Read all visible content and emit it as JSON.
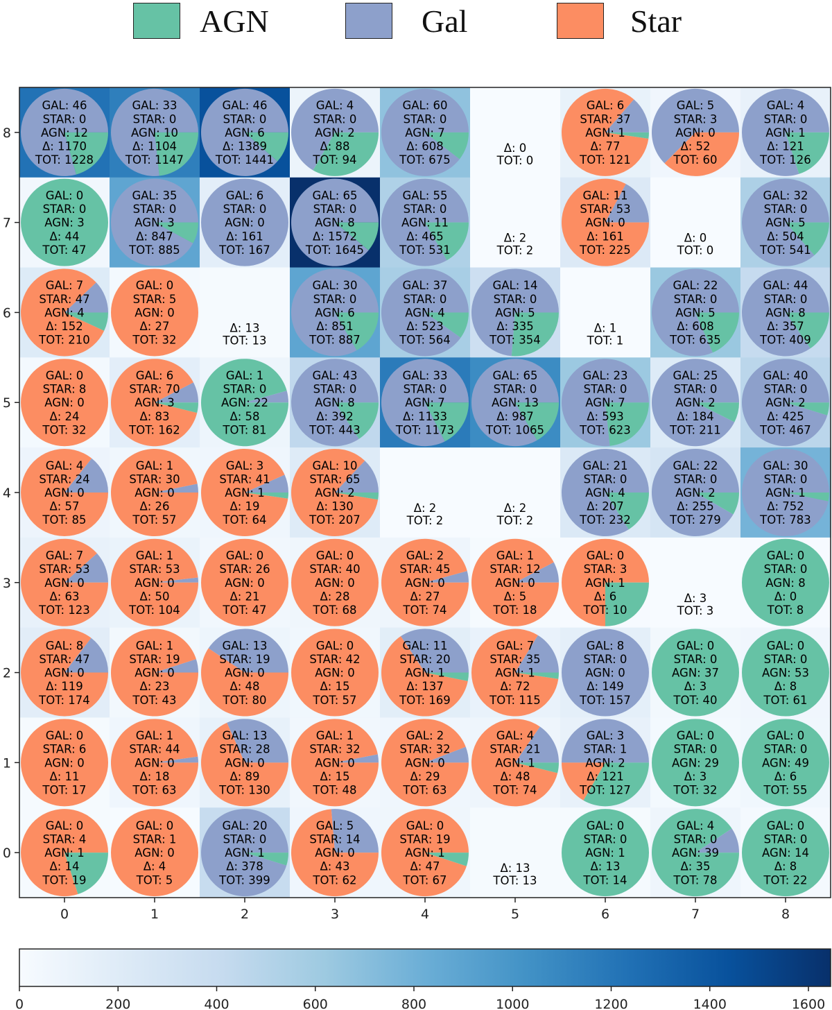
{
  "legend": {
    "items": [
      {
        "label": "AGN",
        "color": "#66c2a5"
      },
      {
        "label": "Gal",
        "color": "#8da0cb"
      },
      {
        "label": "Star",
        "color": "#fc8d62"
      }
    ]
  },
  "chart_data": {
    "type": "heatmap",
    "title": "",
    "xlabel": "",
    "ylabel": "",
    "x_ticks": [
      "0",
      "1",
      "2",
      "3",
      "4",
      "5",
      "6",
      "7",
      "8"
    ],
    "y_ticks": [
      "0",
      "1",
      "2",
      "3",
      "4",
      "5",
      "6",
      "7",
      "8"
    ],
    "colormap": "Blues",
    "colorbar": {
      "range": [
        0,
        1645
      ],
      "ticks": [
        "0",
        "200",
        "400",
        "600",
        "800",
        "1000",
        "1200",
        "1400",
        "1600"
      ],
      "orientation": "horizontal",
      "placement": "bottom"
    },
    "pie_colors": {
      "gal": "#8da0cb",
      "star": "#fc8d62",
      "agn": "#66c2a5"
    },
    "cell_label_keys": {
      "gal": "GAL",
      "star": "STAR",
      "agn": "AGN",
      "delta": "Δ",
      "total": "TOT"
    },
    "cells": [
      {
        "x": 0,
        "y": 8,
        "gal": 46,
        "star": 0,
        "agn": 12,
        "delta": 1170,
        "total": 1228
      },
      {
        "x": 1,
        "y": 8,
        "gal": 33,
        "star": 0,
        "agn": 10,
        "delta": 1104,
        "total": 1147
      },
      {
        "x": 2,
        "y": 8,
        "gal": 46,
        "star": 0,
        "agn": 6,
        "delta": 1389,
        "total": 1441
      },
      {
        "x": 3,
        "y": 8,
        "gal": 4,
        "star": 0,
        "agn": 2,
        "delta": 88,
        "total": 94
      },
      {
        "x": 4,
        "y": 8,
        "gal": 60,
        "star": 0,
        "agn": 7,
        "delta": 608,
        "total": 675
      },
      {
        "x": 5,
        "y": 8,
        "delta": 0,
        "total": 0
      },
      {
        "x": 6,
        "y": 8,
        "gal": 6,
        "star": 37,
        "agn": 1,
        "delta": 77,
        "total": 121
      },
      {
        "x": 7,
        "y": 8,
        "gal": 5,
        "star": 3,
        "agn": 0,
        "delta": 52,
        "total": 60
      },
      {
        "x": 8,
        "y": 8,
        "gal": 4,
        "star": 0,
        "agn": 1,
        "delta": 121,
        "total": 126
      },
      {
        "x": 0,
        "y": 7,
        "gal": 0,
        "star": 0,
        "agn": 3,
        "delta": 44,
        "total": 47
      },
      {
        "x": 1,
        "y": 7,
        "gal": 35,
        "star": 0,
        "agn": 3,
        "delta": 847,
        "total": 885
      },
      {
        "x": 2,
        "y": 7,
        "gal": 6,
        "star": 0,
        "agn": 0,
        "delta": 161,
        "total": 167
      },
      {
        "x": 3,
        "y": 7,
        "gal": 65,
        "star": 0,
        "agn": 8,
        "delta": 1572,
        "total": 1645
      },
      {
        "x": 4,
        "y": 7,
        "gal": 55,
        "star": 0,
        "agn": 11,
        "delta": 465,
        "total": 531
      },
      {
        "x": 5,
        "y": 7,
        "delta": 2,
        "total": 2
      },
      {
        "x": 6,
        "y": 7,
        "gal": 11,
        "star": 53,
        "agn": 0,
        "delta": 161,
        "total": 225
      },
      {
        "x": 7,
        "y": 7,
        "delta": 0,
        "total": 0
      },
      {
        "x": 8,
        "y": 7,
        "gal": 32,
        "star": 0,
        "agn": 5,
        "delta": 504,
        "total": 541
      },
      {
        "x": 0,
        "y": 6,
        "gal": 7,
        "star": 47,
        "agn": 4,
        "delta": 152,
        "total": 210
      },
      {
        "x": 1,
        "y": 6,
        "gal": 0,
        "star": 5,
        "agn": 0,
        "delta": 27,
        "total": 32
      },
      {
        "x": 2,
        "y": 6,
        "delta": 13,
        "total": 13
      },
      {
        "x": 3,
        "y": 6,
        "gal": 30,
        "star": 0,
        "agn": 6,
        "delta": 851,
        "total": 887
      },
      {
        "x": 4,
        "y": 6,
        "gal": 37,
        "star": 0,
        "agn": 4,
        "delta": 523,
        "total": 564
      },
      {
        "x": 5,
        "y": 6,
        "gal": 14,
        "star": 0,
        "agn": 5,
        "delta": 335,
        "total": 354
      },
      {
        "x": 6,
        "y": 6,
        "delta": 1,
        "total": 1
      },
      {
        "x": 7,
        "y": 6,
        "gal": 22,
        "star": 0,
        "agn": 5,
        "delta": 608,
        "total": 635
      },
      {
        "x": 8,
        "y": 6,
        "gal": 44,
        "star": 0,
        "agn": 8,
        "delta": 357,
        "total": 409
      },
      {
        "x": 0,
        "y": 5,
        "gal": 0,
        "star": 8,
        "agn": 0,
        "delta": 24,
        "total": 32
      },
      {
        "x": 1,
        "y": 5,
        "gal": 6,
        "star": 70,
        "agn": 3,
        "delta": 83,
        "total": 162
      },
      {
        "x": 2,
        "y": 5,
        "gal": 1,
        "star": 0,
        "agn": 22,
        "delta": 58,
        "total": 81
      },
      {
        "x": 3,
        "y": 5,
        "gal": 43,
        "star": 0,
        "agn": 8,
        "delta": 392,
        "total": 443
      },
      {
        "x": 4,
        "y": 5,
        "gal": 33,
        "star": 0,
        "agn": 7,
        "delta": 1133,
        "total": 1173
      },
      {
        "x": 5,
        "y": 5,
        "gal": 65,
        "star": 0,
        "agn": 13,
        "delta": 987,
        "total": 1065
      },
      {
        "x": 6,
        "y": 5,
        "gal": 23,
        "star": 0,
        "agn": 7,
        "delta": 593,
        "total": 623
      },
      {
        "x": 7,
        "y": 5,
        "gal": 25,
        "star": 0,
        "agn": 2,
        "delta": 184,
        "total": 211
      },
      {
        "x": 8,
        "y": 5,
        "gal": 40,
        "star": 0,
        "agn": 2,
        "delta": 425,
        "total": 467
      },
      {
        "x": 0,
        "y": 4,
        "gal": 4,
        "star": 24,
        "agn": 0,
        "delta": 57,
        "total": 85
      },
      {
        "x": 1,
        "y": 4,
        "gal": 1,
        "star": 30,
        "agn": 0,
        "delta": 26,
        "total": 57
      },
      {
        "x": 2,
        "y": 4,
        "gal": 3,
        "star": 41,
        "agn": 1,
        "delta": 19,
        "total": 64
      },
      {
        "x": 3,
        "y": 4,
        "gal": 10,
        "star": 65,
        "agn": 2,
        "delta": 130,
        "total": 207
      },
      {
        "x": 4,
        "y": 4,
        "delta": 2,
        "total": 2
      },
      {
        "x": 5,
        "y": 4,
        "delta": 2,
        "total": 2
      },
      {
        "x": 6,
        "y": 4,
        "gal": 21,
        "star": 0,
        "agn": 4,
        "delta": 207,
        "total": 232
      },
      {
        "x": 7,
        "y": 4,
        "gal": 22,
        "star": 0,
        "agn": 2,
        "delta": 255,
        "total": 279
      },
      {
        "x": 8,
        "y": 4,
        "gal": 30,
        "star": 0,
        "agn": 1,
        "delta": 752,
        "total": 783
      },
      {
        "x": 0,
        "y": 3,
        "gal": 7,
        "star": 53,
        "agn": 0,
        "delta": 63,
        "total": 123
      },
      {
        "x": 1,
        "y": 3,
        "gal": 1,
        "star": 53,
        "agn": 0,
        "delta": 50,
        "total": 104
      },
      {
        "x": 2,
        "y": 3,
        "gal": 0,
        "star": 26,
        "agn": 0,
        "delta": 21,
        "total": 47
      },
      {
        "x": 3,
        "y": 3,
        "gal": 0,
        "star": 40,
        "agn": 0,
        "delta": 28,
        "total": 68
      },
      {
        "x": 4,
        "y": 3,
        "gal": 2,
        "star": 45,
        "agn": 0,
        "delta": 27,
        "total": 74
      },
      {
        "x": 5,
        "y": 3,
        "gal": 1,
        "star": 12,
        "agn": 0,
        "delta": 5,
        "total": 18
      },
      {
        "x": 6,
        "y": 3,
        "gal": 0,
        "star": 3,
        "agn": 1,
        "delta": 6,
        "total": 10
      },
      {
        "x": 7,
        "y": 3,
        "delta": 3,
        "total": 3
      },
      {
        "x": 8,
        "y": 3,
        "gal": 0,
        "star": 0,
        "agn": 8,
        "delta": 0,
        "total": 8
      },
      {
        "x": 0,
        "y": 2,
        "gal": 8,
        "star": 47,
        "agn": 0,
        "delta": 119,
        "total": 174
      },
      {
        "x": 1,
        "y": 2,
        "gal": 1,
        "star": 19,
        "agn": 0,
        "delta": 23,
        "total": 43
      },
      {
        "x": 2,
        "y": 2,
        "gal": 13,
        "star": 19,
        "agn": 0,
        "delta": 48,
        "total": 80
      },
      {
        "x": 3,
        "y": 2,
        "gal": 0,
        "star": 42,
        "agn": 0,
        "delta": 15,
        "total": 57
      },
      {
        "x": 4,
        "y": 2,
        "gal": 11,
        "star": 20,
        "agn": 1,
        "delta": 137,
        "total": 169
      },
      {
        "x": 5,
        "y": 2,
        "gal": 7,
        "star": 35,
        "agn": 1,
        "delta": 72,
        "total": 115
      },
      {
        "x": 6,
        "y": 2,
        "gal": 8,
        "star": 0,
        "agn": 0,
        "delta": 149,
        "total": 157
      },
      {
        "x": 7,
        "y": 2,
        "gal": 0,
        "star": 0,
        "agn": 37,
        "delta": 3,
        "total": 40
      },
      {
        "x": 8,
        "y": 2,
        "gal": 0,
        "star": 0,
        "agn": 53,
        "delta": 8,
        "total": 61
      },
      {
        "x": 0,
        "y": 1,
        "gal": 0,
        "star": 6,
        "agn": 0,
        "delta": 11,
        "total": 17
      },
      {
        "x": 1,
        "y": 1,
        "gal": 1,
        "star": 44,
        "agn": 0,
        "delta": 18,
        "total": 63
      },
      {
        "x": 2,
        "y": 1,
        "gal": 13,
        "star": 28,
        "agn": 0,
        "delta": 89,
        "total": 130
      },
      {
        "x": 3,
        "y": 1,
        "gal": 1,
        "star": 32,
        "agn": 0,
        "delta": 15,
        "total": 48
      },
      {
        "x": 4,
        "y": 1,
        "gal": 2,
        "star": 32,
        "agn": 0,
        "delta": 29,
        "total": 63
      },
      {
        "x": 5,
        "y": 1,
        "gal": 4,
        "star": 21,
        "agn": 1,
        "delta": 48,
        "total": 74
      },
      {
        "x": 6,
        "y": 1,
        "gal": 3,
        "star": 1,
        "agn": 2,
        "delta": 121,
        "total": 127
      },
      {
        "x": 7,
        "y": 1,
        "gal": 0,
        "star": 0,
        "agn": 29,
        "delta": 3,
        "total": 32
      },
      {
        "x": 8,
        "y": 1,
        "gal": 0,
        "star": 0,
        "agn": 49,
        "delta": 6,
        "total": 55
      },
      {
        "x": 0,
        "y": 0,
        "gal": 0,
        "star": 4,
        "agn": 1,
        "delta": 14,
        "total": 19
      },
      {
        "x": 1,
        "y": 0,
        "gal": 0,
        "star": 1,
        "agn": 0,
        "delta": 4,
        "total": 5
      },
      {
        "x": 2,
        "y": 0,
        "gal": 20,
        "star": 0,
        "agn": 1,
        "delta": 378,
        "total": 399
      },
      {
        "x": 3,
        "y": 0,
        "gal": 5,
        "star": 14,
        "agn": 0,
        "delta": 43,
        "total": 62
      },
      {
        "x": 4,
        "y": 0,
        "gal": 0,
        "star": 19,
        "agn": 1,
        "delta": 47,
        "total": 67
      },
      {
        "x": 5,
        "y": 0,
        "delta": 13,
        "total": 13
      },
      {
        "x": 6,
        "y": 0,
        "gal": 0,
        "star": 0,
        "agn": 1,
        "delta": 13,
        "total": 14
      },
      {
        "x": 7,
        "y": 0,
        "gal": 4,
        "star": 0,
        "agn": 39,
        "delta": 35,
        "total": 78
      },
      {
        "x": 8,
        "y": 0,
        "gal": 0,
        "star": 0,
        "agn": 14,
        "delta": 8,
        "total": 22
      }
    ]
  }
}
